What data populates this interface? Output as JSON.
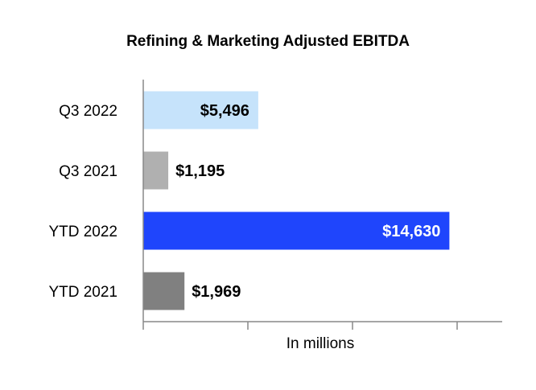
{
  "chart_data": {
    "type": "bar",
    "orientation": "horizontal",
    "title": "Refining & Marketing Adjusted EBITDA",
    "xlabel": "In millions",
    "ylabel": "",
    "categories": [
      "Q3 2022",
      "Q3 2021",
      "YTD 2022",
      "YTD 2021"
    ],
    "values": [
      5496,
      1195,
      14630,
      1969
    ],
    "value_labels": [
      "$5,496",
      "$1,195",
      "$14,630",
      "$1,969"
    ],
    "bar_colors": [
      "#c6e3fb",
      "#b0b0b0",
      "#1f45fc",
      "#808080"
    ],
    "label_placement": [
      "inside",
      "outside",
      "inside",
      "outside"
    ],
    "label_colors": [
      "#000000",
      "#000000",
      "#ffffff",
      "#000000"
    ],
    "xlim": [
      0,
      17500
    ],
    "x_ticks": [
      0,
      5000,
      10000,
      15000
    ],
    "grid": false,
    "legend": "none"
  }
}
